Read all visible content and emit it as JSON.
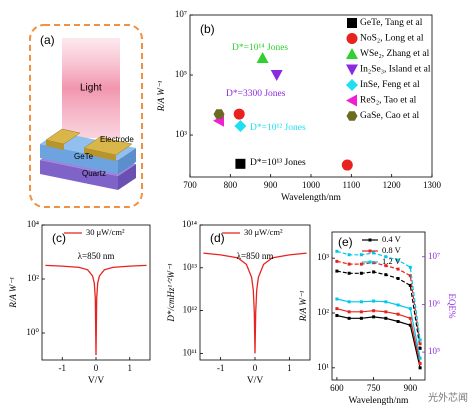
{
  "diagram": {
    "panel_label": "(a)",
    "light": "Light",
    "electrode": "Electrode",
    "channel": "GeTe",
    "substrate": "Quartz"
  },
  "chart_data": [
    {
      "type": "scatter",
      "panel_label": "(b)",
      "x_label": "Wavelength/nm",
      "y_label": "R/A W⁻¹",
      "ylog": true,
      "xlim": [
        700,
        1300
      ],
      "xticks": [
        700,
        800,
        900,
        1000,
        1100,
        1200,
        1300
      ],
      "ylim": [
        40,
        10000000
      ],
      "yticks": [
        {
          "value": 1000,
          "label": "10³"
        },
        {
          "value": 100000,
          "label": "10⁵"
        },
        {
          "value": 10000000,
          "label": "10⁷"
        }
      ],
      "series": [
        {
          "name": "GeTe, Tang et al",
          "color": "#000000",
          "marker": "square",
          "x": [
            825
          ],
          "values": [
            110
          ]
        },
        {
          "name": "NoS₂, Long et al",
          "color": "#e8231f",
          "marker": "circle",
          "x": [
            822,
            1090
          ],
          "values": [
            5000,
            100
          ]
        },
        {
          "name": "WSe₂, Zhang et al",
          "color": "#2fd02f",
          "marker": "triangle-up",
          "x": [
            880
          ],
          "values": [
            370000
          ]
        },
        {
          "name": "In₂Se₃, Island et al",
          "color": "#8a2be2",
          "marker": "triangle-down",
          "x": [
            915
          ],
          "values": [
            100000
          ]
        },
        {
          "name": "InSe, Feng et al",
          "color": "#1fe0f0",
          "marker": "diamond",
          "x": [
            825
          ],
          "values": [
            2000
          ]
        },
        {
          "name": "ReS₂, Tao et al",
          "color": "#f020d0",
          "marker": "triangle-left",
          "x": [
            772
          ],
          "values": [
            3000
          ]
        },
        {
          "name": "GaSe, Cao et al",
          "color": "#6b6b1f",
          "marker": "hexagon",
          "x": [
            772
          ],
          "values": [
            5000
          ]
        }
      ],
      "annotations": [
        {
          "text": "D*=10¹⁴ Jones",
          "color": "#2fd02f"
        },
        {
          "text": "D*=3300 Jones",
          "color": "#8a2be2"
        },
        {
          "text": "D*=10¹² Jones",
          "color": "#1fe0f0"
        },
        {
          "text": "D*=10¹³ Jones",
          "color": "#000000"
        }
      ]
    },
    {
      "type": "line",
      "panel_label": "(c)",
      "x_label": "V/V",
      "y_label": "R/A W⁻¹",
      "ylog": true,
      "annotation": "λ=850 nm",
      "xlim": [
        -1.6,
        1.6
      ],
      "xticks": [
        -1,
        0,
        1
      ],
      "ylim": [
        0.1,
        10000
      ],
      "yticks": [
        {
          "value": 1,
          "label": "10⁰"
        },
        {
          "value": 100,
          "label": "10²"
        },
        {
          "value": 10000,
          "label": "10⁴"
        }
      ],
      "x": [
        -1.5,
        -1,
        -0.5,
        -0.25,
        -0.1,
        -0.05,
        -0.02,
        0,
        0.02,
        0.05,
        0.1,
        0.25,
        0.5,
        1,
        1.5
      ],
      "series": [
        {
          "name": "30 μW/cm²",
          "color": "#e8231f",
          "values": [
            320,
            300,
            270,
            220,
            130,
            70,
            20,
            0.15,
            20,
            70,
            130,
            220,
            270,
            300,
            320
          ]
        }
      ]
    },
    {
      "type": "line",
      "panel_label": "(d)",
      "x_label": "V/V",
      "y_label": "D*/cmHz¹ᐟ²W⁻¹",
      "ylog": true,
      "annotation": "λ=850 nm",
      "xlim": [
        -1.6,
        1.6
      ],
      "xticks": [
        -1,
        0,
        1
      ],
      "ylim": [
        70000000000,
        100000000000000
      ],
      "yticks": [
        {
          "value": 100000000000,
          "label": "10¹¹"
        },
        {
          "value": 1000000000000,
          "label": "10¹²"
        },
        {
          "value": 10000000000000,
          "label": "10¹³"
        },
        {
          "value": 100000000000000,
          "label": "10¹⁴"
        }
      ],
      "x": [
        -1.5,
        -1,
        -0.5,
        -0.25,
        -0.1,
        -0.05,
        -0.02,
        0,
        0.02,
        0.05,
        0.1,
        0.25,
        0.5,
        1,
        1.5
      ],
      "series": [
        {
          "name": "30 μW/cm²",
          "color": "#e8231f",
          "values": [
            22000000000000,
            20000000000000,
            17000000000000,
            12000000000000,
            6000000000000,
            3000000000000,
            900000000000,
            100000000000,
            900000000000,
            3000000000000,
            6000000000000,
            12000000000000,
            17000000000000,
            20000000000000,
            22000000000000
          ]
        }
      ]
    },
    {
      "type": "dual-line",
      "panel_label": "(e)",
      "x_label": "Wavelength/nm",
      "y_label": "R/A W⁻¹",
      "y2_label": "EQE%",
      "ylog": true,
      "xlim": [
        580,
        960
      ],
      "xticks": [
        600,
        750,
        900
      ],
      "ylim": [
        6,
        3000
      ],
      "yticks": [
        {
          "value": 10,
          "label": "10¹"
        },
        {
          "value": 100,
          "label": "10²"
        },
        {
          "value": 1000,
          "label": "10³"
        }
      ],
      "y2lim": [
        26000,
        33000000
      ],
      "y2ticks": [
        {
          "value": 100000,
          "label": "10⁵"
        },
        {
          "value": 1000000,
          "label": "10⁶"
        },
        {
          "value": 10000000,
          "label": "10⁷"
        }
      ],
      "x": [
        600,
        650,
        700,
        750,
        800,
        850,
        900,
        940
      ],
      "series": [
        {
          "name": "0.4 V",
          "color": "#000000",
          "values": [
            90,
            80,
            80,
            85,
            80,
            70,
            60,
            10
          ],
          "y2_values": [
            5000000,
            4500000,
            4500000,
            4800000,
            4200000,
            3500000,
            2500000,
            120000
          ]
        },
        {
          "name": "0.8 V",
          "color": "#e8231f",
          "values": [
            120,
            105,
            105,
            110,
            105,
            95,
            80,
            12
          ],
          "y2_values": [
            8000000,
            7000000,
            7000000,
            7500000,
            6500000,
            5500000,
            4000000,
            150000
          ]
        },
        {
          "name": "1.2 V",
          "color": "#00c8e8",
          "values": [
            180,
            160,
            160,
            165,
            160,
            140,
            120,
            15
          ],
          "y2_values": [
            13000000,
            11000000,
            11000000,
            12000000,
            10000000,
            8500000,
            6000000,
            180000
          ]
        }
      ]
    }
  ],
  "watermark": "光外芯闻"
}
